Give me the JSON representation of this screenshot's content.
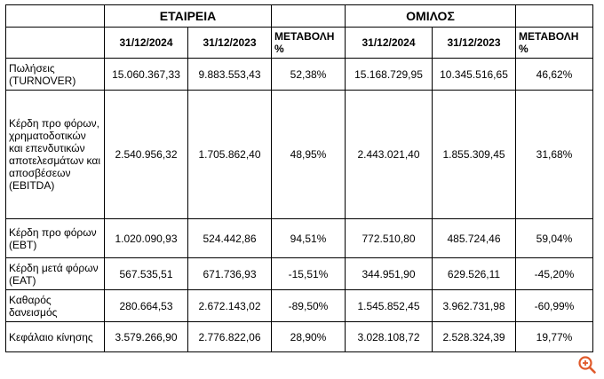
{
  "header": {
    "company": "ΕΤΑΙΡΕΙΑ",
    "group": "ΟΜΙΛΟΣ",
    "date_2024": "31/12/2024",
    "date_2023": "31/12/2023",
    "change": "ΜΕΤΑΒΟΛΗ %"
  },
  "rows": [
    {
      "label": "Πωλήσεις (TURNOVER)",
      "c2024": "15.060.367,33",
      "c2023": "9.883.553,43",
      "cchg": "52,38%",
      "g2024": "15.168.729,95",
      "g2023": "10.345.516,65",
      "gchg": "46,62%"
    },
    {
      "label": "Κέρδη προ φόρων, χρηματοδοτικών και επενδυτικών αποτελεσμάτων και αποσβέσεων (EBITDA)",
      "c2024": "2.540.956,32",
      "c2023": "1.705.862,40",
      "cchg": "48,95%",
      "g2024": "2.443.021,40",
      "g2023": "1.855.309,45",
      "gchg": "31,68%"
    },
    {
      "label": "Κέρδη προ φόρων (EBT)",
      "c2024": "1.020.090,93",
      "c2023": "524.442,86",
      "cchg": "94,51%",
      "g2024": "772.510,80",
      "g2023": "485.724,46",
      "gchg": "59,04%"
    },
    {
      "label": "Κέρδη μετά φόρων (EAT)",
      "c2024": "567.535,51",
      "c2023": "671.736,93",
      "cchg": "-15,51%",
      "g2024": "344.951,90",
      "g2023": "629.526,11",
      "gchg": "-45,20%"
    },
    {
      "label": "Καθαρός δανεισμός",
      "c2024": "280.664,53",
      "c2023": "2.672.143,02",
      "cchg": "-89,50%",
      "g2024": "1.545.852,45",
      "g2023": "3.962.731,98",
      "gchg": "-60,99%"
    },
    {
      "label": "Κεφάλαιο κίνησης",
      "c2024": "3.579.266,90",
      "c2023": "2.776.822,06",
      "cchg": "28,90%",
      "g2024": "3.028.108,72",
      "g2023": "2.528.324,39",
      "gchg": "19,77%"
    }
  ],
  "icons": {
    "zoom": "zoom-in-icon",
    "accent": "#e05a2b"
  }
}
